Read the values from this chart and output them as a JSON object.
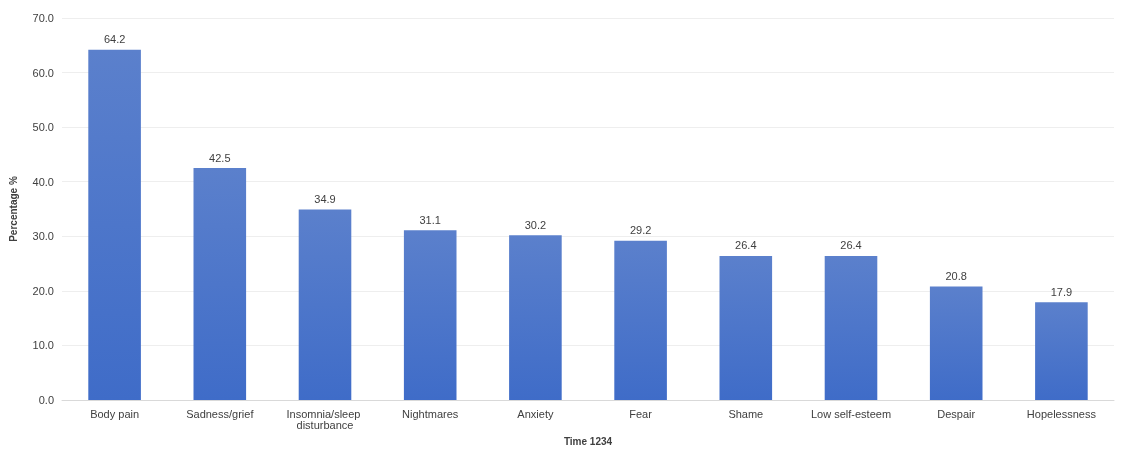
{
  "chart_data": {
    "type": "bar",
    "xlabel": "Time 1234",
    "ylabel": "Percentage %",
    "categories": [
      "Body pain",
      "Sadness/grief",
      "Insomnia/sleep disturbance",
      "Nightmares",
      "Anxiety",
      "Fear",
      "Shame",
      "Low self-esteem",
      "Despair",
      "Hopelessness"
    ],
    "values": [
      64.2,
      42.5,
      34.9,
      31.1,
      30.2,
      29.2,
      26.4,
      26.4,
      20.8,
      17.9
    ],
    "color": "#3f6cc8",
    "ylim": [
      0,
      70
    ],
    "yticks": [
      {
        "value": 0,
        "label": "0.0"
      },
      {
        "value": 10,
        "label": "10.0"
      },
      {
        "value": 20,
        "label": "20.0"
      },
      {
        "value": 30,
        "label": "30.0"
      },
      {
        "value": 40,
        "label": "40.0"
      },
      {
        "value": 50,
        "label": "50.0"
      },
      {
        "value": 60,
        "label": "60.0"
      },
      {
        "value": 70,
        "label": "70.0"
      }
    ],
    "grid": "y",
    "data_labels": true
  }
}
